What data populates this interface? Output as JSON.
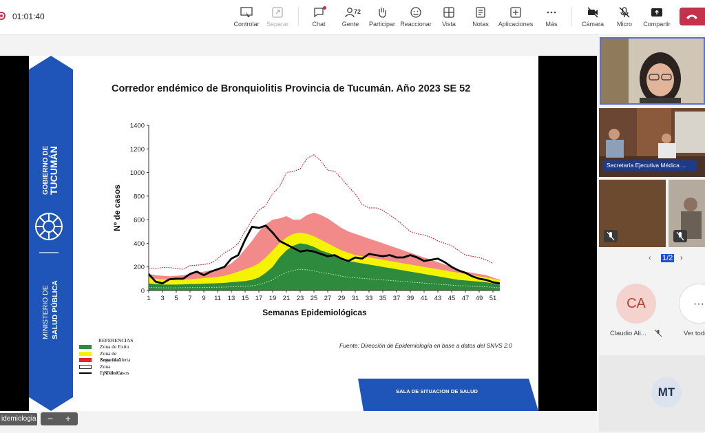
{
  "meeting": {
    "timer": "01:01:40",
    "toolbar": {
      "controlar": "Controlar",
      "separar": "Separar",
      "chat": "Chat",
      "gente": "Gente",
      "gente_count": "72",
      "participar": "Participar",
      "reaccionar": "Reaccionar",
      "vista": "Vista",
      "notas": "Notas",
      "aplicaciones": "Aplicaciones",
      "mas": "Más",
      "camara": "Cámara",
      "micro": "Micro",
      "compartir": "Compartir"
    },
    "shared_label": "idemiologia",
    "zoom_minus": "−",
    "zoom_plus": "+",
    "panel": {
      "name_chip": "Secretaría Ejecutiva Médica ...",
      "pager": "1/2",
      "participants": [
        {
          "initials": "CA",
          "name": "Claudio Ali...",
          "bg": "#f4d3cf",
          "fg": "#b4402f"
        },
        {
          "initials": "···",
          "name": "Ver todo",
          "bg": "#ffffff",
          "fg": "#333333"
        },
        {
          "initials": "MT",
          "name": "",
          "bg": "#dde3ee",
          "fg": "#1f2f4f"
        }
      ]
    }
  },
  "slide": {
    "brand_top": "GOBIERNO DE",
    "brand_top2": "TUCUMÁN",
    "brand_bottom": "MINISTERIO DE",
    "brand_bottom2": "SALUD PÚBLICA",
    "title": "Corredor endémico de Bronquiolitis Provincia de Tucumán. Año 2023 SE 52",
    "source": "Fuente: Dirección de Epidemiología en base a datos del SNVS 2.0",
    "sala": "SALA DE SITUACION  DE SALUD",
    "references": {
      "title": "REFERENCIAS",
      "items": [
        {
          "label": "Zona de Exito",
          "color": "#2e8b3e"
        },
        {
          "label": "Zona de Seguridad",
          "color": "#f4f400"
        },
        {
          "label": "Zona de Alerta",
          "color": "#e0262a"
        },
        {
          "label": "Zona Epidémica",
          "color": "#ffffff"
        },
        {
          "label": "Nº de Casos",
          "color": "#000000"
        }
      ]
    }
  },
  "chart_data": {
    "type": "area",
    "ylabel": "Nº de casos",
    "xlabel": "Semanas Epidemiológicas",
    "ylim": [
      0,
      1400
    ],
    "yticks": [
      0,
      200,
      400,
      600,
      800,
      1000,
      1200,
      1400
    ],
    "xticks": [
      1,
      3,
      5,
      7,
      9,
      11,
      13,
      15,
      17,
      19,
      21,
      23,
      25,
      27,
      29,
      31,
      33,
      35,
      37,
      39,
      41,
      43,
      45,
      47,
      49,
      51
    ],
    "x": [
      1,
      2,
      3,
      4,
      5,
      6,
      7,
      8,
      9,
      10,
      11,
      12,
      13,
      14,
      15,
      16,
      17,
      18,
      19,
      20,
      21,
      22,
      23,
      24,
      25,
      26,
      27,
      28,
      29,
      30,
      31,
      32,
      33,
      34,
      35,
      36,
      37,
      38,
      39,
      40,
      41,
      42,
      43,
      44,
      45,
      46,
      47,
      48,
      49,
      50,
      51,
      52
    ],
    "series": [
      {
        "name": "Zona de Exito",
        "color": "#2e8b3e",
        "values": [
          60,
          55,
          50,
          50,
          50,
          52,
          55,
          55,
          58,
          60,
          62,
          65,
          70,
          75,
          80,
          90,
          110,
          150,
          200,
          280,
          340,
          380,
          400,
          390,
          370,
          340,
          320,
          300,
          270,
          250,
          240,
          230,
          220,
          210,
          200,
          190,
          180,
          170,
          160,
          150,
          140,
          130,
          120,
          110,
          100,
          90,
          85,
          80,
          75,
          70,
          60,
          50
        ]
      },
      {
        "name": "Zona de Seguridad",
        "color": "#f4f400",
        "values": [
          110,
          100,
          95,
          90,
          90,
          92,
          95,
          100,
          105,
          110,
          115,
          125,
          140,
          160,
          180,
          200,
          230,
          280,
          340,
          400,
          450,
          480,
          490,
          480,
          460,
          430,
          400,
          370,
          340,
          320,
          300,
          290,
          280,
          270,
          260,
          250,
          240,
          230,
          220,
          210,
          200,
          190,
          180,
          170,
          160,
          150,
          140,
          130,
          120,
          110,
          100,
          85
        ]
      },
      {
        "name": "Zona de Alerta",
        "color": "#e0262a",
        "values": [
          140,
          130,
          125,
          120,
          125,
          130,
          140,
          150,
          160,
          170,
          180,
          200,
          230,
          280,
          350,
          420,
          500,
          560,
          600,
          610,
          630,
          600,
          600,
          640,
          660,
          640,
          610,
          570,
          530,
          500,
          480,
          460,
          440,
          420,
          400,
          380,
          360,
          340,
          320,
          300,
          280,
          260,
          240,
          220,
          200,
          180,
          160,
          150,
          140,
          130,
          110,
          90
        ]
      },
      {
        "name": "Zona Epidémica",
        "color": "#ffffff",
        "values": [
          190,
          185,
          195,
          195,
          185,
          180,
          210,
          215,
          220,
          230,
          270,
          320,
          350,
          400,
          500,
          600,
          680,
          720,
          820,
          880,
          1000,
          1010,
          1030,
          1120,
          1150,
          1100,
          1020,
          1010,
          950,
          880,
          820,
          730,
          700,
          700,
          680,
          640,
          600,
          550,
          500,
          480,
          470,
          450,
          420,
          400,
          380,
          340,
          300,
          290,
          280,
          260,
          230,
          null
        ]
      },
      {
        "name": "Nº de Casos",
        "color": "#000000",
        "values": [
          140,
          75,
          60,
          95,
          100,
          100,
          140,
          160,
          130,
          160,
          180,
          200,
          270,
          300,
          430,
          540,
          530,
          550,
          490,
          420,
          390,
          360,
          330,
          340,
          330,
          310,
          290,
          300,
          270,
          250,
          280,
          270,
          310,
          300,
          290,
          300,
          280,
          280,
          300,
          280,
          250,
          260,
          270,
          240,
          200,
          170,
          150,
          120,
          100,
          90,
          70,
          60
        ]
      }
    ]
  }
}
